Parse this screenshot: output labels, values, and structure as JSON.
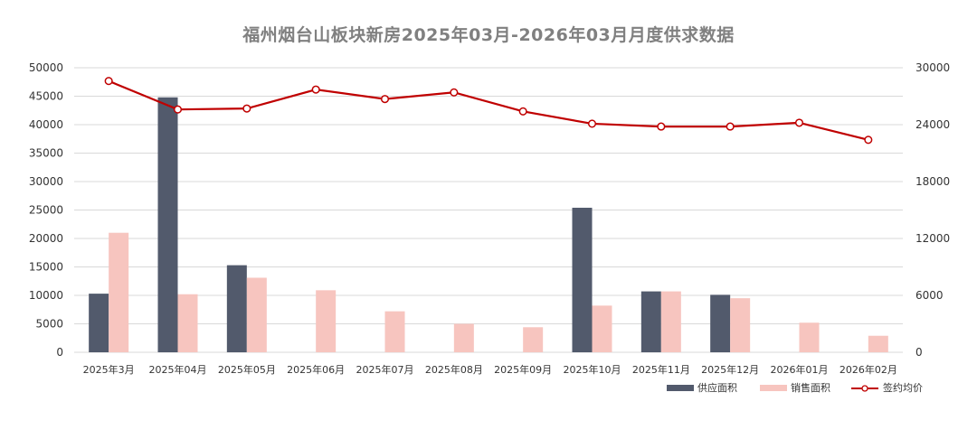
{
  "chart_data": {
    "type": "bar",
    "title": "福州烟台山板块新房2025年03月-2026年03月月度供求数据",
    "categories": [
      "2025年3月",
      "2025年04月",
      "2025年05月",
      "2025年06月",
      "2025年07月",
      "2025年08月",
      "2025年09月",
      "2025年10月",
      "2025年11月",
      "2025年12月",
      "2026年01月",
      "2026年02月"
    ],
    "series": [
      {
        "name": "供应面积",
        "type": "bar",
        "axis": "left",
        "color": "#525a6c",
        "values": [
          10300,
          44800,
          15300,
          0,
          0,
          0,
          0,
          25400,
          10700,
          10100,
          0,
          0
        ]
      },
      {
        "name": "销售面积",
        "type": "bar",
        "axis": "left",
        "color": "#f7c5bf",
        "values": [
          21000,
          10200,
          13100,
          10900,
          7200,
          5000,
          4400,
          8200,
          10700,
          9500,
          5200,
          2900
        ]
      },
      {
        "name": "签约均价",
        "type": "line",
        "axis": "right",
        "color": "#c00000",
        "values": [
          28600,
          25600,
          25700,
          27700,
          26700,
          27400,
          25400,
          24100,
          23800,
          23800,
          24200,
          22400
        ]
      }
    ],
    "left_axis": {
      "ylim": [
        0,
        50000
      ],
      "ticks": [
        "0",
        "5000",
        "10000",
        "15000",
        "20000",
        "25000",
        "30000",
        "35000",
        "40000",
        "45000",
        "50000"
      ]
    },
    "right_axis": {
      "ylim": [
        0,
        30000
      ],
      "ticks": [
        "0",
        "6000",
        "12000",
        "18000",
        "24000",
        "30000"
      ]
    },
    "grid": true,
    "legend_position": "bottom-right"
  }
}
